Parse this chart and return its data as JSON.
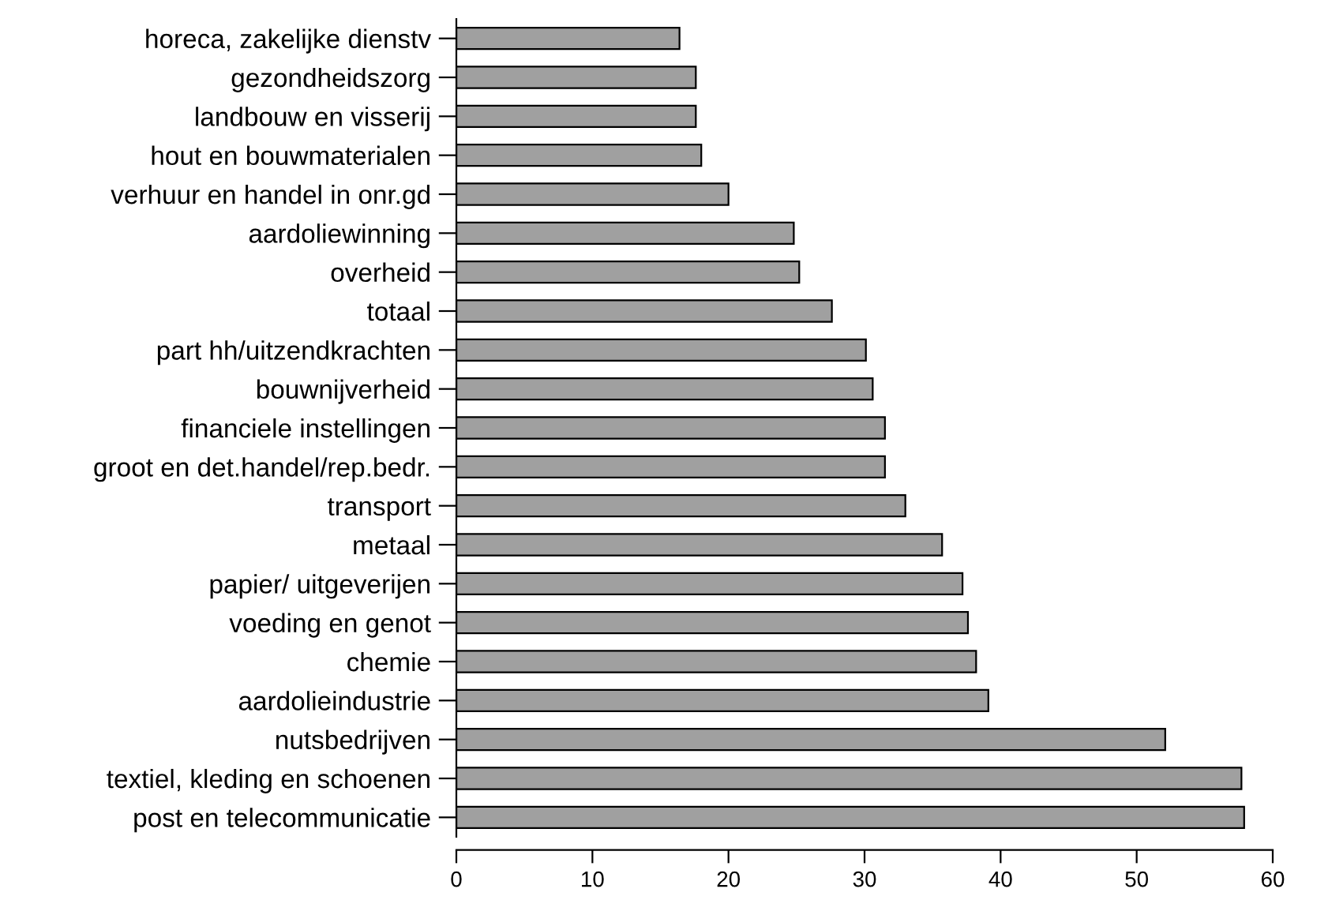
{
  "chart_data": {
    "type": "bar",
    "orientation": "horizontal",
    "categories": [
      "horeca, zakelijke dienstv",
      "gezondheidszorg",
      "landbouw en visserij",
      "hout en bouwmaterialen",
      "verhuur en handel in onr.gd",
      "aardoliewinning",
      "overheid",
      "totaal",
      "part hh/uitzendkrachten",
      "bouwnijverheid",
      "financiele instellingen",
      "groot en det.handel/rep.bedr.",
      "transport",
      "metaal",
      "papier/ uitgeverijen",
      "voeding en genot",
      "chemie",
      "aardolieindustrie",
      "nutsbedrijven",
      "textiel, kleding en schoenen",
      "post en telecommunicatie"
    ],
    "values": [
      16.4,
      17.6,
      17.6,
      18.0,
      20.0,
      24.8,
      25.2,
      27.6,
      30.1,
      30.6,
      31.5,
      31.5,
      33.0,
      35.7,
      37.2,
      37.6,
      38.2,
      39.1,
      52.1,
      57.7,
      57.9
    ],
    "color": "#a0a0a0",
    "xlim": [
      0,
      60
    ],
    "xticks": [
      0,
      10,
      20,
      30,
      40,
      50,
      60
    ],
    "grid": false,
    "legend": false
  }
}
